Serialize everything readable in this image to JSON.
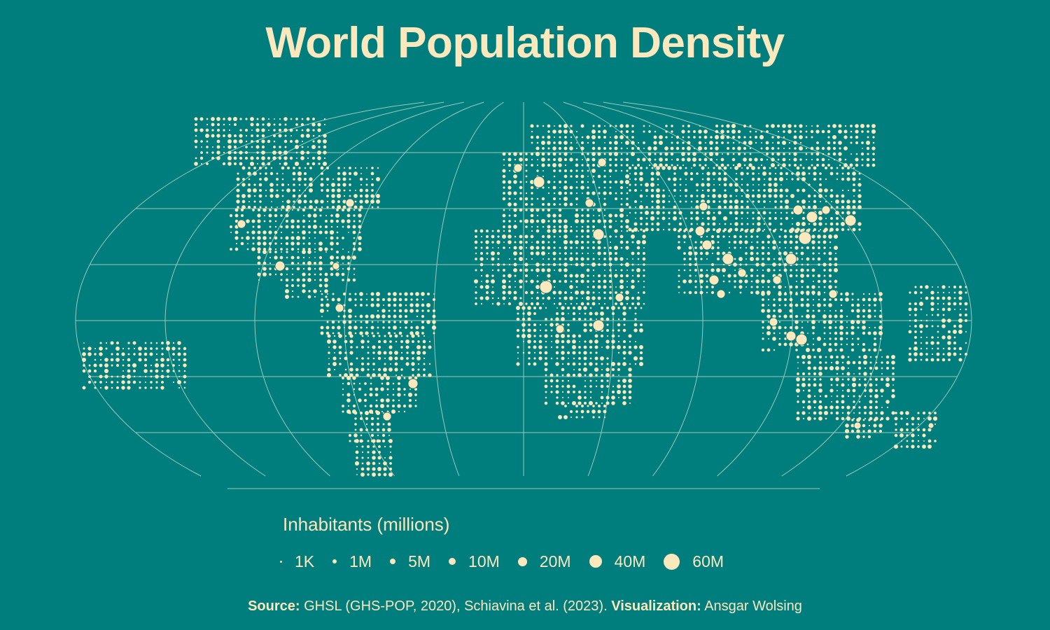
{
  "title": "World Population Density",
  "legend": {
    "title": "Inhabitants (millions)",
    "items": [
      {
        "label": "1K"
      },
      {
        "label": "1M"
      },
      {
        "label": "5M"
      },
      {
        "label": "10M"
      },
      {
        "label": "20M"
      },
      {
        "label": "40M"
      },
      {
        "label": "60M"
      }
    ]
  },
  "caption": {
    "source_label": "Source:",
    "source_text": "GHSL (GHS-POP, 2020), Schiavina et al. (2023).",
    "viz_label": "Visualization:",
    "viz_text": "Ansgar Wolsing"
  },
  "colors": {
    "background": "#007e7e",
    "land_dots": "#fbe9bd",
    "graticule": "#cfe3cc"
  }
}
